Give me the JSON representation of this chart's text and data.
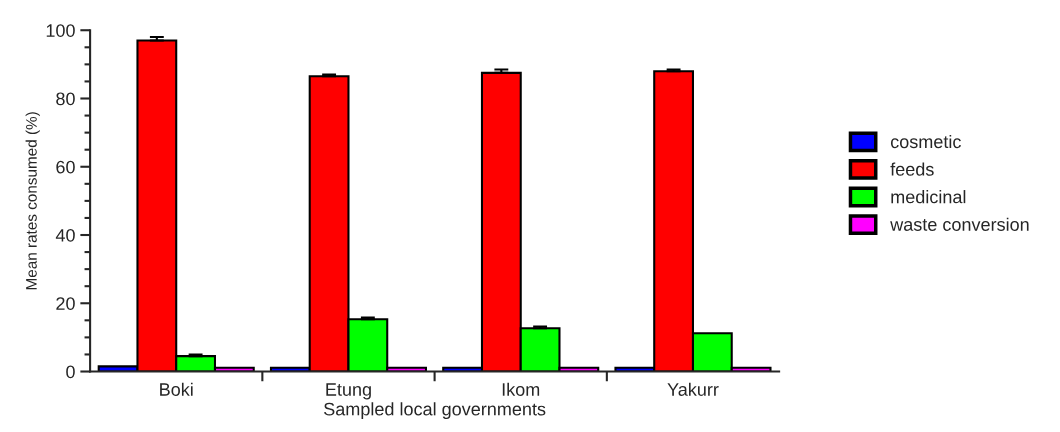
{
  "chart_data": {
    "type": "bar",
    "xlabel": "Sampled local governments",
    "ylabel": "Mean rates consumed (%)",
    "categories": [
      "Boki",
      "Etung",
      "Ikom",
      "Yakurr"
    ],
    "series": [
      {
        "name": "cosmetic",
        "color": "#0000ff",
        "values": [
          1.5,
          1.1,
          1.1,
          1.1
        ]
      },
      {
        "name": "feeds",
        "color": "#ff0000",
        "values": [
          97,
          86.5,
          87.5,
          88
        ],
        "errors": [
          [
            97,
            98
          ],
          [
            86.5,
            87
          ],
          [
            87.5,
            88.5
          ],
          [
            88,
            88.5
          ]
        ]
      },
      {
        "name": "medicinal",
        "color": "#00ff00",
        "values": [
          4.5,
          15.3,
          12.7,
          11.2
        ],
        "errors": [
          [
            4.5,
            5
          ],
          [
            15.3,
            15.8
          ],
          [
            12.7,
            13.2
          ],
          null
        ]
      },
      {
        "name": "waste conversion",
        "color": "#ff00ff",
        "values": [
          1.1,
          1.1,
          1.1,
          1.1
        ]
      }
    ],
    "ylim": [
      0,
      100
    ],
    "yticks": [
      0,
      20,
      40,
      60,
      80,
      100
    ],
    "grid": false,
    "legend": "right"
  }
}
